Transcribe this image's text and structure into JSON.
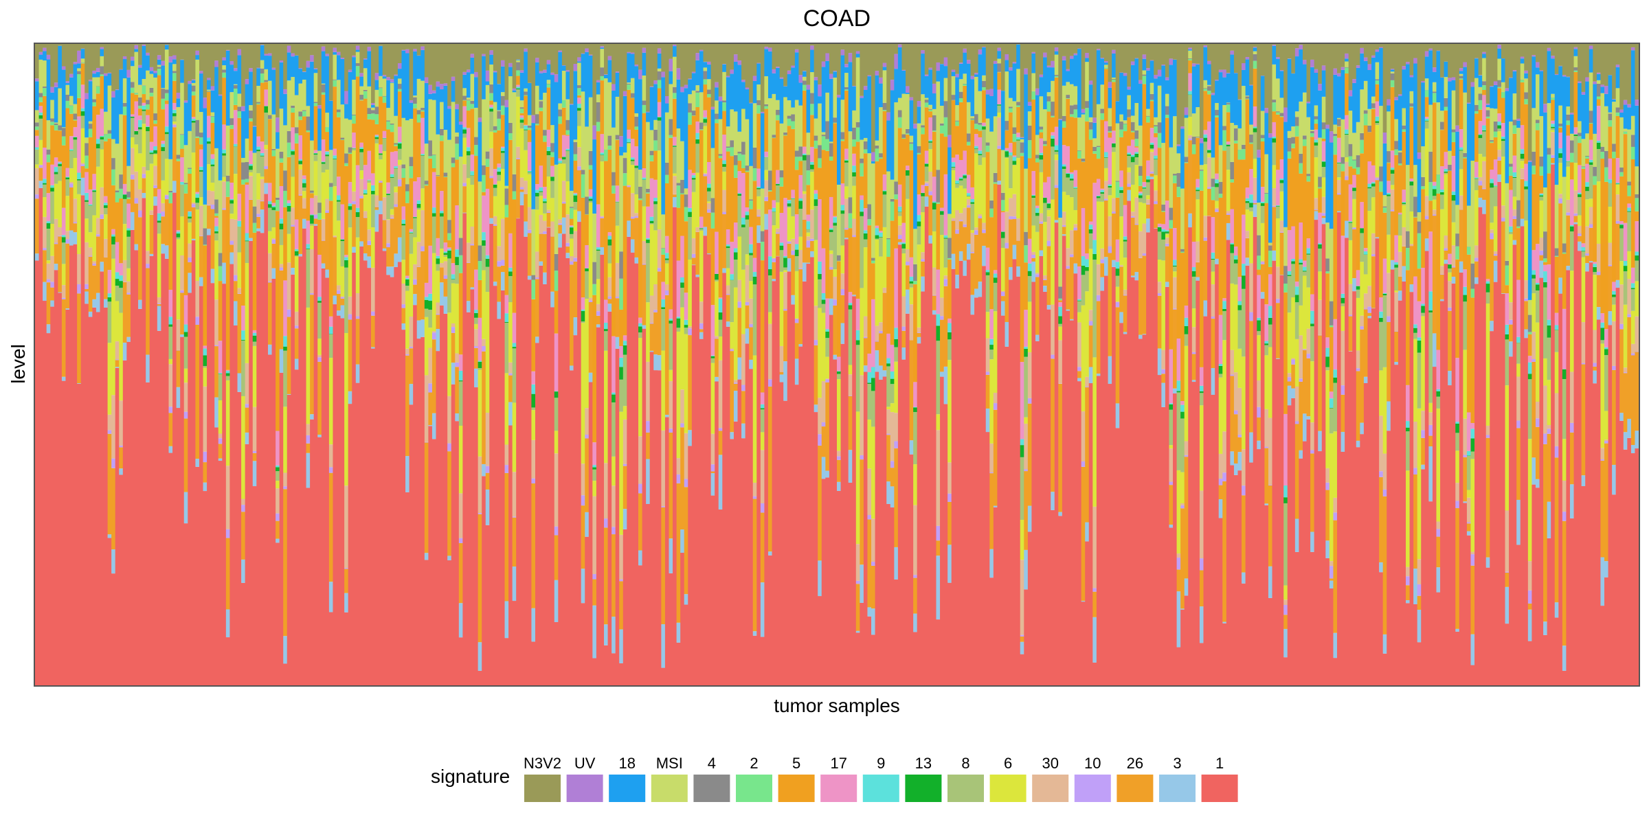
{
  "chart_data": {
    "type": "bar",
    "stacked": true,
    "normalized": true,
    "title": "COAD",
    "xlabel": "tumor samples",
    "ylabel": "level",
    "ylim": [
      0,
      1
    ],
    "x_ticks_shown": false,
    "y_ticks_shown": false,
    "grid": false,
    "legend_position": "bottom",
    "legend_title": "signature",
    "n_samples": 420,
    "series": [
      {
        "name": "N3V2",
        "color": "#9a9a58",
        "typical_share": 0.04
      },
      {
        "name": "UV",
        "color": "#b07fd6",
        "typical_share": 0.005
      },
      {
        "name": "18",
        "color": "#1ea0f0",
        "typical_share": 0.05
      },
      {
        "name": "MSI",
        "color": "#c8dc6a",
        "typical_share": 0.04
      },
      {
        "name": "4",
        "color": "#8a8a8a",
        "typical_share": 0.01
      },
      {
        "name": "2",
        "color": "#78e68c",
        "typical_share": 0.01
      },
      {
        "name": "5",
        "color": "#f0a020",
        "typical_share": 0.08
      },
      {
        "name": "17",
        "color": "#ee94c6",
        "typical_share": 0.03
      },
      {
        "name": "9",
        "color": "#5ce1dc",
        "typical_share": 0.005
      },
      {
        "name": "13",
        "color": "#12b02a",
        "typical_share": 0.005
      },
      {
        "name": "8",
        "color": "#a8c478",
        "typical_share": 0.03
      },
      {
        "name": "6",
        "color": "#dce63c",
        "typical_share": 0.06
      },
      {
        "name": "30",
        "color": "#e4b896",
        "typical_share": 0.03
      },
      {
        "name": "10",
        "color": "#c0a0f8",
        "typical_share": 0.005
      },
      {
        "name": "26",
        "color": "#f0a028",
        "typical_share": 0.07
      },
      {
        "name": "3",
        "color": "#96c8e8",
        "typical_share": 0.02
      },
      {
        "name": "1",
        "color": "#f06460",
        "typical_share": 0.55
      }
    ]
  }
}
